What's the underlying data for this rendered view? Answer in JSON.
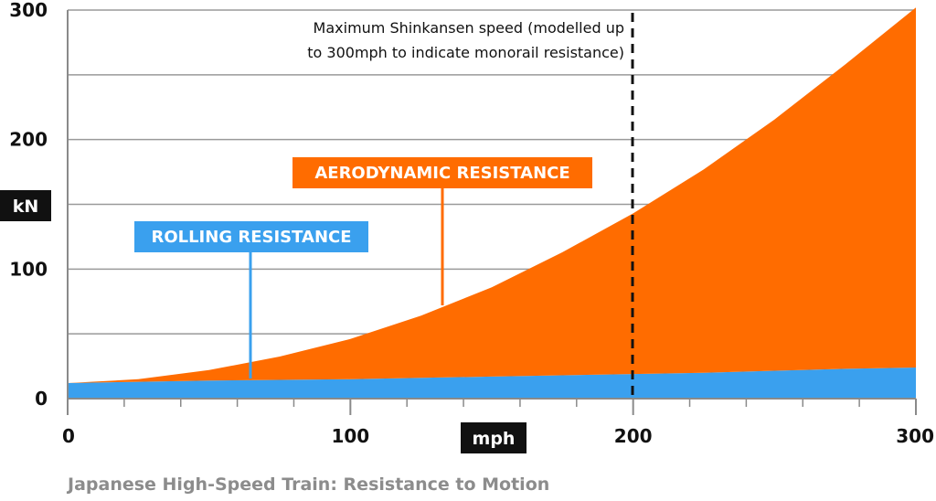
{
  "chart_data": {
    "type": "area",
    "title": "Japanese High-Speed Train: Resistance to Motion",
    "xlabel": "mph",
    "ylabel": "kN",
    "xlim": [
      0,
      300
    ],
    "ylim": [
      0,
      300
    ],
    "x_ticks": [
      "0",
      "100",
      "200",
      "300"
    ],
    "y_ticks": [
      "0",
      "100",
      "200",
      "300"
    ],
    "grid": true,
    "stacked": true,
    "x": [
      0,
      25,
      50,
      75,
      100,
      125,
      150,
      175,
      200,
      225,
      250,
      275,
      300
    ],
    "series": [
      {
        "name": "ROLLING RESISTANCE",
        "color": "#3aa0ee",
        "values": [
          12,
          13,
          14,
          14.5,
          15,
          16,
          17,
          18,
          19,
          20,
          21.5,
          23,
          24
        ]
      },
      {
        "name": "AERODYNAMIC RESISTANCE",
        "color": "#ff6c00",
        "values": [
          0,
          2,
          8,
          18,
          31,
          48,
          69,
          95,
          124,
          157,
          194,
          235,
          278
        ]
      }
    ],
    "annotations": [
      {
        "x": 200,
        "style": "dashed",
        "text_line1": "Maximum Shinkansen speed (modelled up",
        "text_line2": "to 300mph to indicate monorail resistance)"
      }
    ]
  }
}
